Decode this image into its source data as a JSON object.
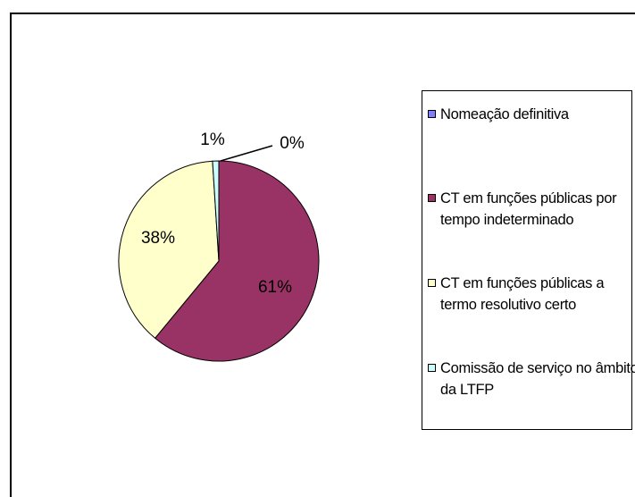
{
  "chart_data": {
    "type": "pie",
    "categories": [
      "Nomeação definitiva",
      "CT em funções públicas por tempo indeterminado",
      "CT em funções públicas a  termo resolutivo certo",
      "Comissão de serviço no âmbito da LTFP"
    ],
    "values": [
      0,
      61,
      38,
      1
    ],
    "value_labels": [
      "0%",
      "61%",
      "38%",
      "1%"
    ],
    "colors": [
      "#8080ff",
      "#993366",
      "#ffffcc",
      "#ccffff"
    ],
    "legend": "right"
  }
}
